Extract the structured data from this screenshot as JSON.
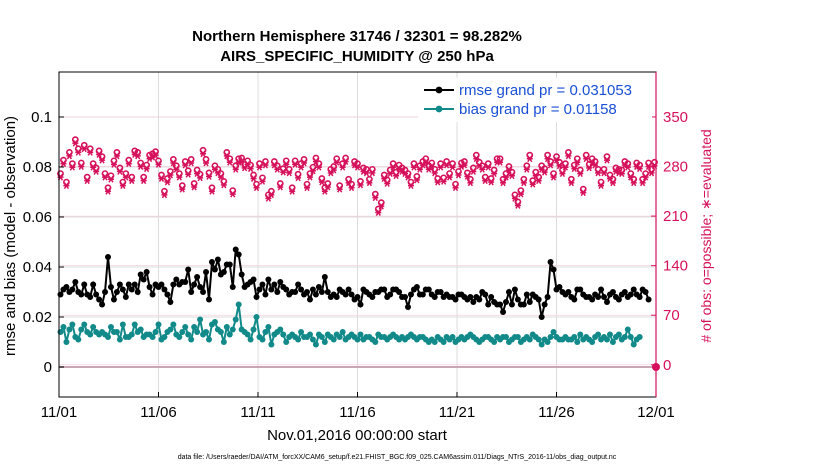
{
  "chart_data": {
    "type": "line",
    "title_line1": "Northern Hemisphere 31746 / 32301 = 98.282%",
    "title_line2": "AIRS_SPECIFIC_HUMIDITY @ 250 hPa",
    "xlabel": "Nov.01,2016 00:00:00 start",
    "ylabel": "rmse and bias (model - observation)",
    "y2label": "# of obs: o=possible; ∗=evaluated",
    "x_ticks": [
      "11/01",
      "11/06",
      "11/11",
      "11/16",
      "11/21",
      "11/26",
      "12/01"
    ],
    "xlim": [
      0,
      30
    ],
    "ylim": [
      -0.012,
      0.118
    ],
    "y_ticks": [
      0,
      0.02,
      0.04,
      0.06,
      0.08,
      0.1
    ],
    "y_tick_labels": [
      "0",
      "0.02",
      "0.04",
      "0.06",
      "0.08",
      "0.1"
    ],
    "y2lim": [
      -45.5,
      413.5
    ],
    "y2_ticks": [
      0,
      70,
      140,
      210,
      280,
      350
    ],
    "y2_tick_labels": [
      "0",
      "70",
      "140",
      "210",
      "280",
      "350"
    ],
    "grid": true,
    "legend": {
      "position": "top-right",
      "rmse": "rmse grand pr = 0.031053",
      "bias": "bias grand pr = 0.01158"
    },
    "colors": {
      "rmse": "#000000",
      "bias": "#128a8a",
      "obs": "#d6115c",
      "zero": "#c9a7b0"
    },
    "rmse": [
      0.029,
      0.031,
      0.032,
      0.03,
      0.031,
      0.034,
      0.03,
      0.029,
      0.033,
      0.029,
      0.028,
      0.033,
      0.029,
      0.027,
      0.025,
      0.03,
      0.044,
      0.032,
      0.027,
      0.03,
      0.033,
      0.031,
      0.028,
      0.033,
      0.031,
      0.033,
      0.03,
      0.037,
      0.035,
      0.038,
      0.032,
      0.029,
      0.033,
      0.032,
      0.033,
      0.031,
      0.029,
      0.026,
      0.033,
      0.035,
      0.033,
      0.034,
      0.034,
      0.039,
      0.03,
      0.033,
      0.036,
      0.032,
      0.03,
      0.038,
      0.027,
      0.042,
      0.039,
      0.043,
      0.037,
      0.038,
      0.041,
      0.041,
      0.032,
      0.047,
      0.045,
      0.037,
      0.032,
      0.033,
      0.034,
      0.035,
      0.028,
      0.031,
      0.033,
      0.029,
      0.035,
      0.031,
      0.033,
      0.03,
      0.034,
      0.032,
      0.031,
      0.029,
      0.03,
      0.03,
      0.033,
      0.031,
      0.029,
      0.03,
      0.027,
      0.031,
      0.029,
      0.032,
      0.03,
      0.036,
      0.03,
      0.028,
      0.029,
      0.028,
      0.031,
      0.03,
      0.029,
      0.031,
      0.029,
      0.027,
      0.028,
      0.025,
      0.031,
      0.03,
      0.029,
      0.028,
      0.03,
      0.03,
      0.031,
      0.031,
      0.028,
      0.029,
      0.031,
      0.031,
      0.03,
      0.028,
      0.028,
      0.024,
      0.029,
      0.031,
      0.032,
      0.029,
      0.029,
      0.031,
      0.031,
      0.029,
      0.028,
      0.03,
      0.03,
      0.028,
      0.029,
      0.028,
      0.028,
      0.027,
      0.029,
      0.029,
      0.028,
      0.027,
      0.028,
      0.026,
      0.028,
      0.027,
      0.03,
      0.029,
      0.025,
      0.028,
      0.026,
      0.025,
      0.025,
      0.022,
      0.026,
      0.03,
      0.025,
      0.031,
      0.027,
      0.025,
      0.025,
      0.029,
      0.026,
      0.029,
      0.028,
      0.027,
      0.02,
      0.025,
      0.028,
      0.042,
      0.039,
      0.031,
      0.032,
      0.03,
      0.029,
      0.03,
      0.028,
      0.027,
      0.031,
      0.031,
      0.029,
      0.028,
      0.028,
      0.027,
      0.029,
      0.028,
      0.031,
      0.028,
      0.026,
      0.029,
      0.03,
      0.028,
      0.027,
      0.029,
      0.03,
      0.028,
      0.029,
      0.031,
      0.029,
      0.028,
      0.031,
      0.03,
      0.027
    ],
    "bias": [
      0.014,
      0.016,
      0.01,
      0.015,
      0.017,
      0.012,
      0.011,
      0.015,
      0.017,
      0.014,
      0.013,
      0.016,
      0.014,
      0.013,
      0.014,
      0.013,
      0.012,
      0.016,
      0.014,
      0.014,
      0.011,
      0.017,
      0.012,
      0.012,
      0.013,
      0.017,
      0.014,
      0.015,
      0.012,
      0.013,
      0.013,
      0.012,
      0.014,
      0.017,
      0.011,
      0.012,
      0.014,
      0.015,
      0.017,
      0.013,
      0.012,
      0.014,
      0.016,
      0.013,
      0.011,
      0.016,
      0.014,
      0.019,
      0.013,
      0.014,
      0.011,
      0.017,
      0.018,
      0.015,
      0.014,
      0.01,
      0.016,
      0.013,
      0.015,
      0.019,
      0.025,
      0.015,
      0.014,
      0.013,
      0.011,
      0.015,
      0.02,
      0.012,
      0.011,
      0.014,
      0.016,
      0.009,
      0.013,
      0.014,
      0.015,
      0.013,
      0.01,
      0.012,
      0.013,
      0.012,
      0.011,
      0.014,
      0.012,
      0.012,
      0.013,
      0.011,
      0.009,
      0.013,
      0.012,
      0.01,
      0.013,
      0.012,
      0.011,
      0.013,
      0.012,
      0.014,
      0.011,
      0.012,
      0.013,
      0.012,
      0.011,
      0.013,
      0.011,
      0.012,
      0.012,
      0.011,
      0.01,
      0.013,
      0.012,
      0.012,
      0.011,
      0.012,
      0.013,
      0.012,
      0.011,
      0.012,
      0.011,
      0.012,
      0.013,
      0.012,
      0.011,
      0.012,
      0.012,
      0.011,
      0.01,
      0.011,
      0.01,
      0.012,
      0.011,
      0.01,
      0.012,
      0.011,
      0.012,
      0.01,
      0.011,
      0.012,
      0.011,
      0.012,
      0.013,
      0.012,
      0.011,
      0.01,
      0.011,
      0.012,
      0.012,
      0.011,
      0.01,
      0.012,
      0.011,
      0.012,
      0.012,
      0.01,
      0.011,
      0.012,
      0.012,
      0.01,
      0.011,
      0.012,
      0.011,
      0.013,
      0.012,
      0.011,
      0.009,
      0.011,
      0.01,
      0.012,
      0.014,
      0.012,
      0.011,
      0.011,
      0.012,
      0.011,
      0.011,
      0.012,
      0.01,
      0.013,
      0.011,
      0.012,
      0.011,
      0.01,
      0.012,
      0.013,
      0.011,
      0.012,
      0.011,
      0.013,
      0.01,
      0.012,
      0.013,
      0.011,
      0.012,
      0.015,
      0.012,
      0.009,
      0.011,
      0.012
    ],
    "obs_possible": [
      270,
      289,
      258,
      300,
      284,
      318,
      305,
      285,
      310,
      265,
      305,
      284,
      278,
      302,
      294,
      270,
      250,
      267,
      288,
      300,
      278,
      258,
      270,
      289,
      265,
      302,
      300,
      285,
      265,
      282,
      296,
      298,
      301,
      288,
      268,
      245,
      263,
      273,
      290,
      281,
      270,
      253,
      287,
      274,
      290,
      256,
      275,
      269,
      303,
      290,
      271,
      250,
      281,
      276,
      270,
      259,
      300,
      291,
      246,
      281,
      291,
      292,
      283,
      288,
      282,
      268,
      255,
      284,
      264,
      287,
      240,
      245,
      287,
      281,
      256,
      277,
      288,
      276,
      250,
      288,
      269,
      284,
      290,
      255,
      270,
      279,
      292,
      284,
      263,
      250,
      256,
      276,
      280,
      291,
      253,
      284,
      292,
      262,
      255,
      287,
      284,
      259,
      278,
      276,
      262,
      276,
      241,
      220,
      229,
      268,
      261,
      275,
      284,
      272,
      282,
      278,
      275,
      270,
      258,
      284,
      266,
      281,
      287,
      291,
      281,
      285,
      276,
      263,
      284,
      264,
      287,
      270,
      284,
      255,
      273,
      285,
      287,
      271,
      262,
      278,
      296,
      286,
      281,
      265,
      284,
      263,
      275,
      291,
      291,
      262,
      270,
      280,
      272,
      240,
      230,
      246,
      262,
      281,
      296,
      260,
      272,
      265,
      281,
      277,
      296,
      287,
      270,
      294,
      286,
      275,
      284,
      300,
      262,
      282,
      291,
      275,
      248,
      296,
      283,
      291,
      287,
      276,
      258,
      276,
      294,
      268,
      262,
      278,
      276,
      275,
      287,
      284,
      270,
      262,
      285,
      282,
      262,
      270,
      285,
      276,
      286
    ],
    "obs_evaluated": [
      265,
      284,
      253,
      295,
      279,
      313,
      300,
      280,
      305,
      260,
      300,
      279,
      273,
      297,
      289,
      265,
      245,
      262,
      283,
      295,
      273,
      253,
      265,
      284,
      260,
      297,
      295,
      280,
      260,
      277,
      291,
      293,
      296,
      283,
      263,
      240,
      258,
      268,
      285,
      276,
      265,
      248,
      282,
      269,
      285,
      251,
      270,
      264,
      298,
      285,
      266,
      245,
      276,
      271,
      265,
      254,
      295,
      286,
      241,
      276,
      286,
      287,
      278,
      283,
      277,
      263,
      250,
      279,
      259,
      282,
      235,
      240,
      282,
      276,
      251,
      272,
      283,
      271,
      245,
      283,
      264,
      279,
      285,
      250,
      265,
      274,
      287,
      279,
      258,
      245,
      251,
      271,
      275,
      286,
      248,
      279,
      287,
      257,
      250,
      282,
      279,
      254,
      273,
      271,
      257,
      271,
      236,
      215,
      224,
      263,
      256,
      270,
      279,
      267,
      277,
      273,
      270,
      265,
      253,
      279,
      261,
      276,
      282,
      286,
      276,
      280,
      271,
      258,
      279,
      259,
      282,
      265,
      279,
      250,
      268,
      280,
      282,
      266,
      257,
      273,
      291,
      281,
      276,
      260,
      279,
      258,
      270,
      286,
      286,
      257,
      265,
      275,
      267,
      235,
      225,
      241,
      257,
      276,
      291,
      255,
      267,
      260,
      276,
      272,
      291,
      282,
      265,
      289,
      281,
      270,
      279,
      295,
      257,
      277,
      286,
      270,
      243,
      291,
      278,
      286,
      282,
      271,
      253,
      271,
      289,
      263,
      257,
      273,
      271,
      270,
      282,
      279,
      265,
      257,
      280,
      277,
      257,
      265,
      280,
      271,
      281
    ]
  },
  "footer": "data file: /Users/raeder/DAI/ATM_forcXX/CAM6_setup/f.e21.FHIST_BGC.f09_025.CAM6assim.011/Diags_NTrS_2016-11/obs_diag_output.nc"
}
